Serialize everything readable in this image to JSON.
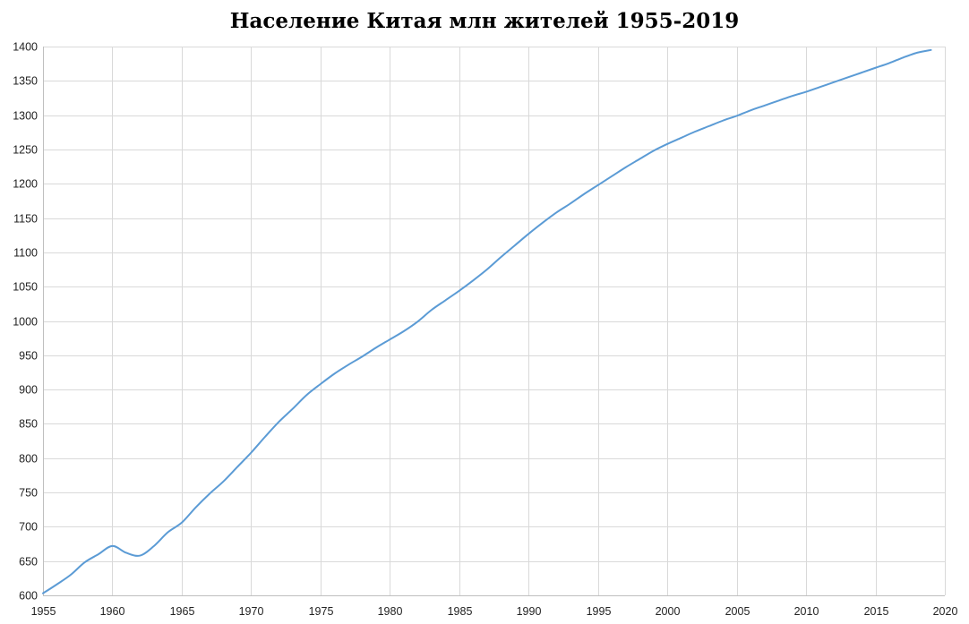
{
  "chart_data": {
    "type": "line",
    "title": "Население Китая млн жителей 1955-2019",
    "xlabel": "",
    "ylabel": "",
    "xlim": [
      1955,
      2020
    ],
    "ylim": [
      600,
      1400
    ],
    "x_ticks": [
      1955,
      1960,
      1965,
      1970,
      1975,
      1980,
      1985,
      1990,
      1995,
      2000,
      2005,
      2010,
      2015,
      2020
    ],
    "y_ticks": [
      600,
      650,
      700,
      750,
      800,
      850,
      900,
      950,
      1000,
      1050,
      1100,
      1150,
      1200,
      1250,
      1300,
      1350,
      1400
    ],
    "grid": true,
    "legend": "none",
    "series": [
      {
        "color": "#5b9bd5",
        "x": [
          1955,
          1956,
          1957,
          1958,
          1959,
          1960,
          1961,
          1962,
          1963,
          1964,
          1965,
          1966,
          1967,
          1968,
          1969,
          1970,
          1971,
          1972,
          1973,
          1974,
          1975,
          1976,
          1977,
          1978,
          1979,
          1980,
          1981,
          1982,
          1983,
          1984,
          1985,
          1986,
          1987,
          1988,
          1989,
          1990,
          1991,
          1992,
          1993,
          1994,
          1995,
          1996,
          1997,
          1998,
          1999,
          2000,
          2001,
          2002,
          2003,
          2004,
          2005,
          2006,
          2007,
          2008,
          2009,
          2010,
          2011,
          2012,
          2013,
          2014,
          2015,
          2016,
          2017,
          2018,
          2019
        ],
        "values": [
          603,
          616,
          630,
          648,
          660,
          672,
          662,
          658,
          672,
          692,
          706,
          728,
          748,
          766,
          787,
          808,
          831,
          853,
          872,
          892,
          908,
          923,
          936,
          948,
          961,
          973,
          985,
          999,
          1016,
          1030,
          1044,
          1059,
          1075,
          1093,
          1110,
          1127,
          1143,
          1158,
          1171,
          1185,
          1198,
          1211,
          1224,
          1236,
          1248,
          1258,
          1267,
          1276,
          1284,
          1292,
          1299,
          1307,
          1314,
          1321,
          1328,
          1334,
          1341,
          1348,
          1355,
          1362,
          1369,
          1376,
          1384,
          1391,
          1395
        ]
      }
    ]
  }
}
